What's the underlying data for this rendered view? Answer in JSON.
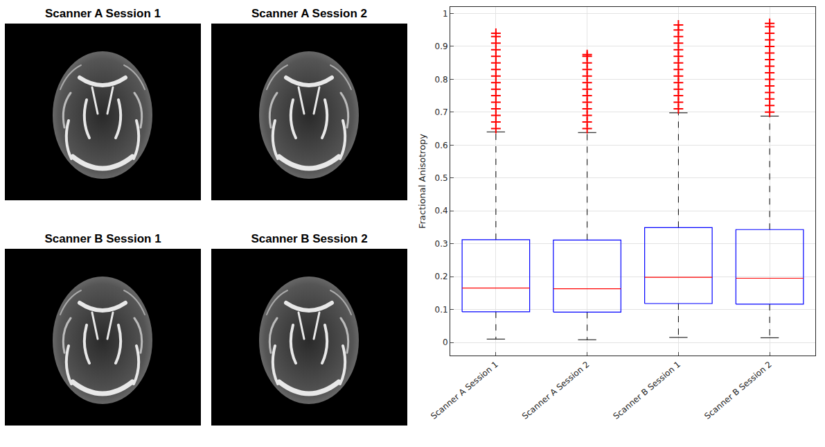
{
  "panels": [
    "Scanner A Session 1",
    "Scanner A Session 2",
    "Scanner B Session 1",
    "Scanner B Session 2"
  ],
  "chart_data": {
    "type": "box",
    "y_label": "Fractional Anisotropy",
    "categories": [
      "Scanner A Session 1",
      "Scanner A Session 2",
      "Scanner B Session 1",
      "Scanner B Session 2"
    ],
    "boxes": [
      {
        "whisker_low": 0.01,
        "q1": 0.093,
        "median": 0.165,
        "q3": 0.312,
        "whisker_high": 0.64,
        "outliers": [
          0.65,
          0.67,
          0.69,
          0.71,
          0.73,
          0.75,
          0.77,
          0.79,
          0.81,
          0.83,
          0.85,
          0.87,
          0.89,
          0.91,
          0.93,
          0.94
        ]
      },
      {
        "whisker_low": 0.008,
        "q1": 0.092,
        "median": 0.163,
        "q3": 0.311,
        "whisker_high": 0.638,
        "outliers": [
          0.65,
          0.67,
          0.69,
          0.71,
          0.73,
          0.75,
          0.77,
          0.79,
          0.81,
          0.83,
          0.85,
          0.87,
          0.875
        ]
      },
      {
        "whisker_low": 0.015,
        "q1": 0.118,
        "median": 0.198,
        "q3": 0.349,
        "whisker_high": 0.698,
        "outliers": [
          0.71,
          0.73,
          0.75,
          0.77,
          0.79,
          0.81,
          0.83,
          0.85,
          0.87,
          0.89,
          0.91,
          0.93,
          0.95,
          0.965
        ]
      },
      {
        "whisker_low": 0.014,
        "q1": 0.116,
        "median": 0.195,
        "q3": 0.343,
        "whisker_high": 0.688,
        "outliers": [
          0.7,
          0.72,
          0.74,
          0.76,
          0.78,
          0.8,
          0.82,
          0.84,
          0.86,
          0.88,
          0.9,
          0.92,
          0.94,
          0.96,
          0.97
        ]
      }
    ],
    "ylim": [
      -0.04,
      1.02
    ],
    "yticks": [
      0,
      0.1,
      0.2,
      0.3,
      0.4,
      0.5,
      0.6,
      0.7,
      0.8,
      0.9,
      1
    ],
    "grid": true
  }
}
